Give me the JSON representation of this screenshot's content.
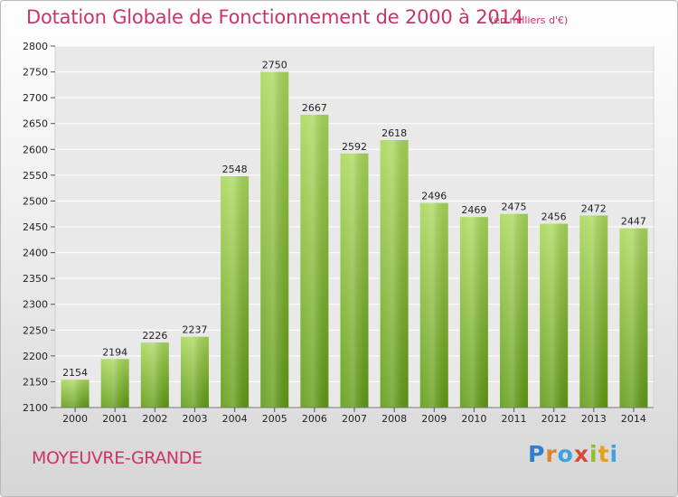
{
  "title": "Dotation Globale de Fonctionnement de 2000 à 2014",
  "subtitle": "(en milliers d'€)",
  "city": "MOYEUVRE-GRANDE",
  "logo": [
    "P",
    "r",
    "o",
    "x",
    "i",
    "t",
    "i"
  ],
  "colors": {
    "title": "#cc3366",
    "bar_top": "#a9d85a",
    "bar_bottom": "#5f9a12",
    "grid": "#ffffff"
  },
  "chart_data": {
    "type": "bar",
    "title": "Dotation Globale de Fonctionnement de 2000 à 2014",
    "subtitle": "(en milliers d'€)",
    "xlabel": "",
    "ylabel": "",
    "categories": [
      "2000",
      "2001",
      "2002",
      "2003",
      "2004",
      "2005",
      "2006",
      "2007",
      "2008",
      "2009",
      "2010",
      "2011",
      "2012",
      "2013",
      "2014"
    ],
    "values": [
      2154,
      2194,
      2226,
      2237,
      2548,
      2750,
      2667,
      2592,
      2618,
      2496,
      2469,
      2475,
      2456,
      2472,
      2447
    ],
    "ylim": [
      2100,
      2800
    ],
    "yticks": [
      2100,
      2150,
      2200,
      2250,
      2300,
      2350,
      2400,
      2450,
      2500,
      2550,
      2600,
      2650,
      2700,
      2750,
      2800
    ],
    "grid": true,
    "data_labels": true
  }
}
